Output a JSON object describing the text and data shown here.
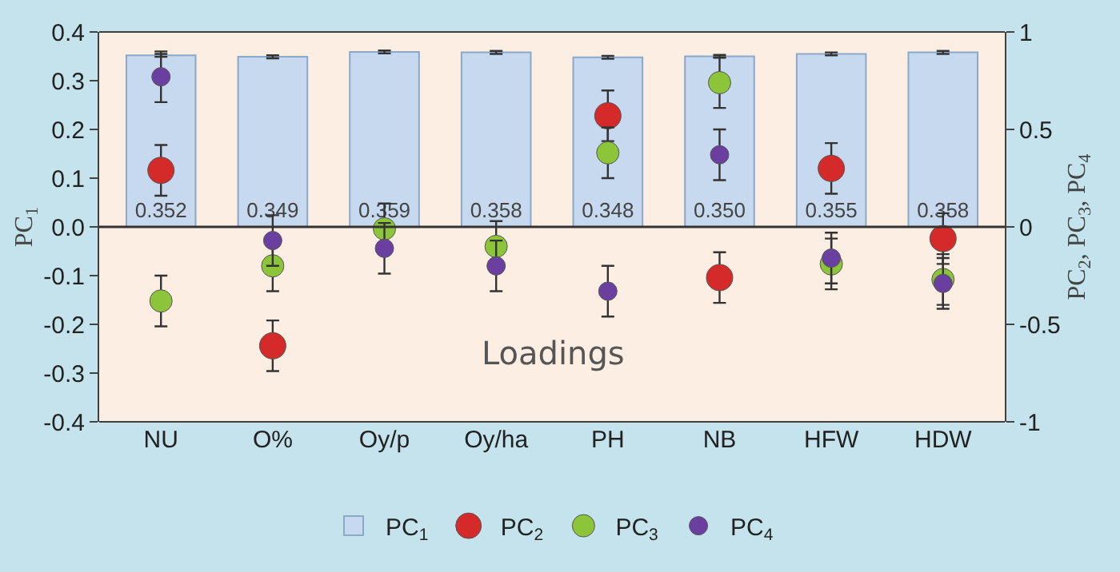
{
  "chart_data": {
    "type": "bar",
    "ylabel": "PC$_{1}$",
    "y2label": "PC$_{2}$, PC$_{3}$, PC$_{4}$",
    "annotations": [
      "Loadings"
    ],
    "categories": [
      "NU",
      "O%",
      "Oy/p",
      "Oy/ha",
      "PH",
      "NB",
      "HFW",
      "HDW"
    ],
    "series": [
      {
        "name": "PC$_{1}$",
        "color": "#c6d9ee",
        "values": [
          0.352,
          0.349,
          0.359,
          0.358,
          0.348,
          0.35,
          0.355,
          0.358
        ],
        "value_labels": [
          "0.352",
          "0.349",
          "0.359",
          "0.358",
          "0.348",
          "0.350",
          "0.355",
          "0.358"
        ],
        "errors": [
          0.003,
          0.003,
          0.003,
          0.003,
          0.003,
          0.003,
          0.003,
          0.003
        ]
      },
      {
        "name": "PC$_{2}$",
        "type": "scatter",
        "axis": "y2",
        "color": "#d42a2a",
        "values": [
          0.29,
          -0.61,
          null,
          null,
          0.57,
          -0.26,
          0.3,
          -0.06
        ],
        "errors": [
          0.13,
          0.13,
          null,
          null,
          0.13,
          0.13,
          0.13,
          0.13
        ]
      },
      {
        "name": "PC$_{3}$",
        "type": "scatter",
        "axis": "y2",
        "color": "#8cc43a",
        "values": [
          -0.38,
          -0.2,
          -0.01,
          -0.1,
          0.38,
          0.74,
          -0.19,
          -0.27
        ],
        "errors": [
          0.13,
          0.13,
          0.13,
          0.13,
          0.13,
          0.13,
          0.13,
          0.13
        ]
      },
      {
        "name": "PC$_{4}$",
        "type": "scatter",
        "axis": "y2",
        "color": "#6a3fa0",
        "values": [
          0.77,
          -0.07,
          -0.11,
          -0.2,
          -0.33,
          0.37,
          -0.16,
          -0.29
        ],
        "errors": [
          0.13,
          0.13,
          0.13,
          0.13,
          0.13,
          0.13,
          0.13,
          0.13
        ]
      }
    ],
    "ylim": [
      -0.4,
      0.4
    ],
    "yticks": [
      0.4,
      0.3,
      0.2,
      0.1,
      {
        "value": 0,
        "label": "0.0"
      },
      -0.1,
      -0.2,
      -0.3,
      -0.4
    ],
    "y2lim": [
      -1,
      1
    ],
    "y2ticks": [
      1,
      0.5,
      0,
      -0.5,
      -1
    ],
    "legend": "bottom",
    "marker": "circle"
  }
}
